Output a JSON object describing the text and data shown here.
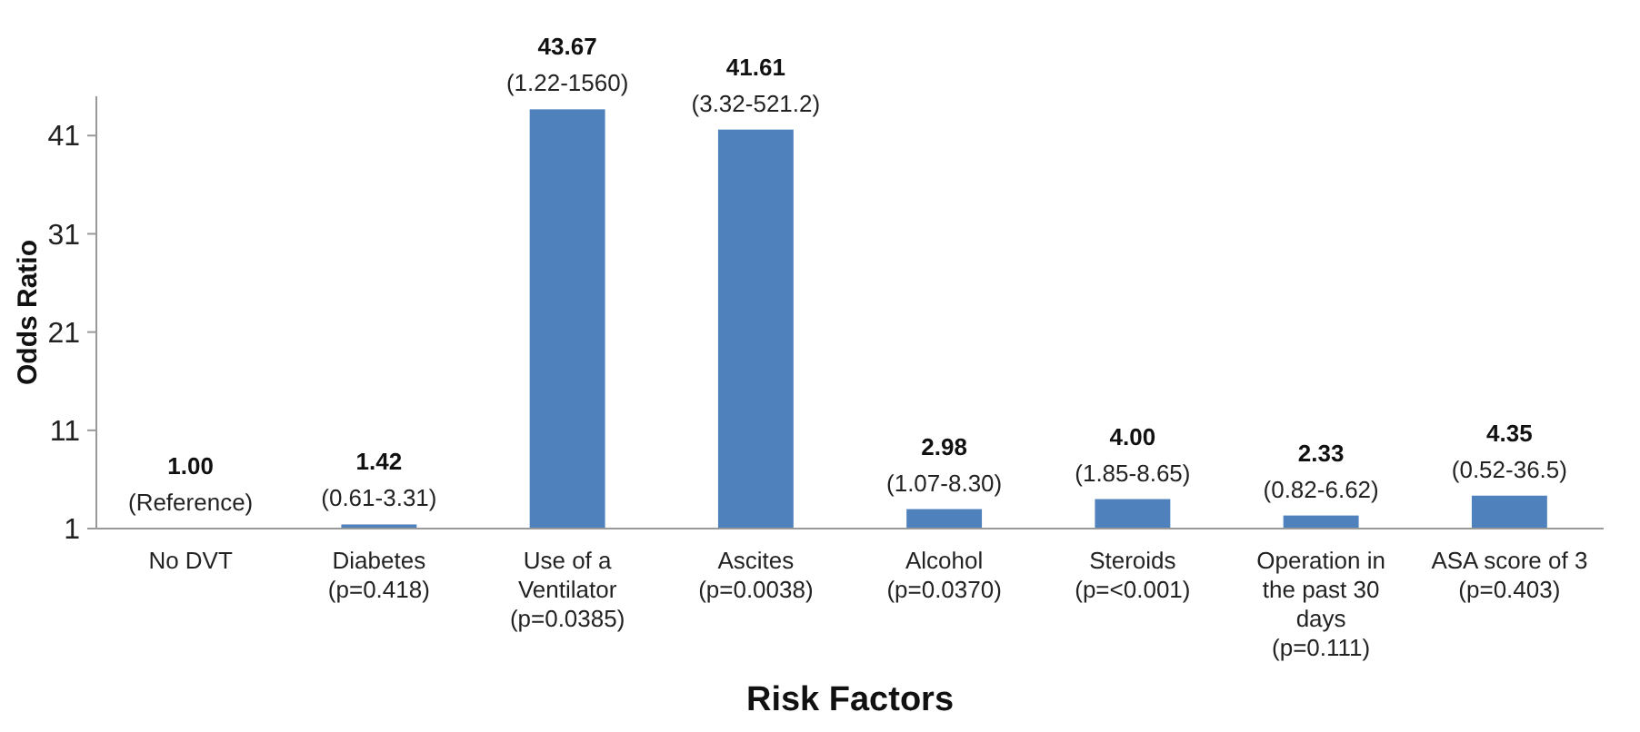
{
  "chart_data": {
    "type": "bar",
    "xlabel": "Risk Factors",
    "ylabel": "Odds Ratio",
    "categories": [
      "No DVT",
      "Diabetes (p=0.418)",
      "Use of a Ventilator (p=0.0385)",
      "Ascites (p=0.0038)",
      "Alcohol (p=0.0370)",
      "Steroids (p=<0.001)",
      "Operation in the past 30 days (p=0.111)",
      "ASA score of 3 (p=0.403)"
    ],
    "values": [
      1.0,
      1.42,
      43.67,
      41.61,
      2.98,
      4.0,
      2.33,
      4.35
    ],
    "value_labels": [
      "1.00",
      "1.42",
      "43.67",
      "41.61",
      "2.98",
      "4.00",
      "2.33",
      "4.35"
    ],
    "color": "#4f81bd",
    "ylim": [
      1,
      45
    ],
    "yticks": [
      1,
      11,
      21,
      31,
      41
    ],
    "grid": false,
    "annotations": [
      {
        "text": "(Reference)",
        "x": "No DVT",
        "y": 1.0
      },
      {
        "text": "(0.61-3.31)",
        "x": "Diabetes (p=0.418)",
        "y": 1.42
      },
      {
        "text": "(1.22-1560)",
        "x": "Use of a Ventilator (p=0.0385)",
        "y": 43.67
      },
      {
        "text": "(3.32-521.2)",
        "x": "Ascites (p=0.0038)",
        "y": 41.61
      },
      {
        "text": "(1.07-8.30)",
        "x": "Alcohol (p=0.0370)",
        "y": 2.98
      },
      {
        "text": "(1.85-8.65)",
        "x": "Steroids (p=<0.001)",
        "y": 4.0
      },
      {
        "text": "(0.82-6.62)",
        "x": "Operation in the past 30 days (p=0.111)",
        "y": 2.33
      },
      {
        "text": "(0.52-36.5)",
        "x": "ASA score of 3 (p=0.403)",
        "y": 4.35
      }
    ]
  }
}
